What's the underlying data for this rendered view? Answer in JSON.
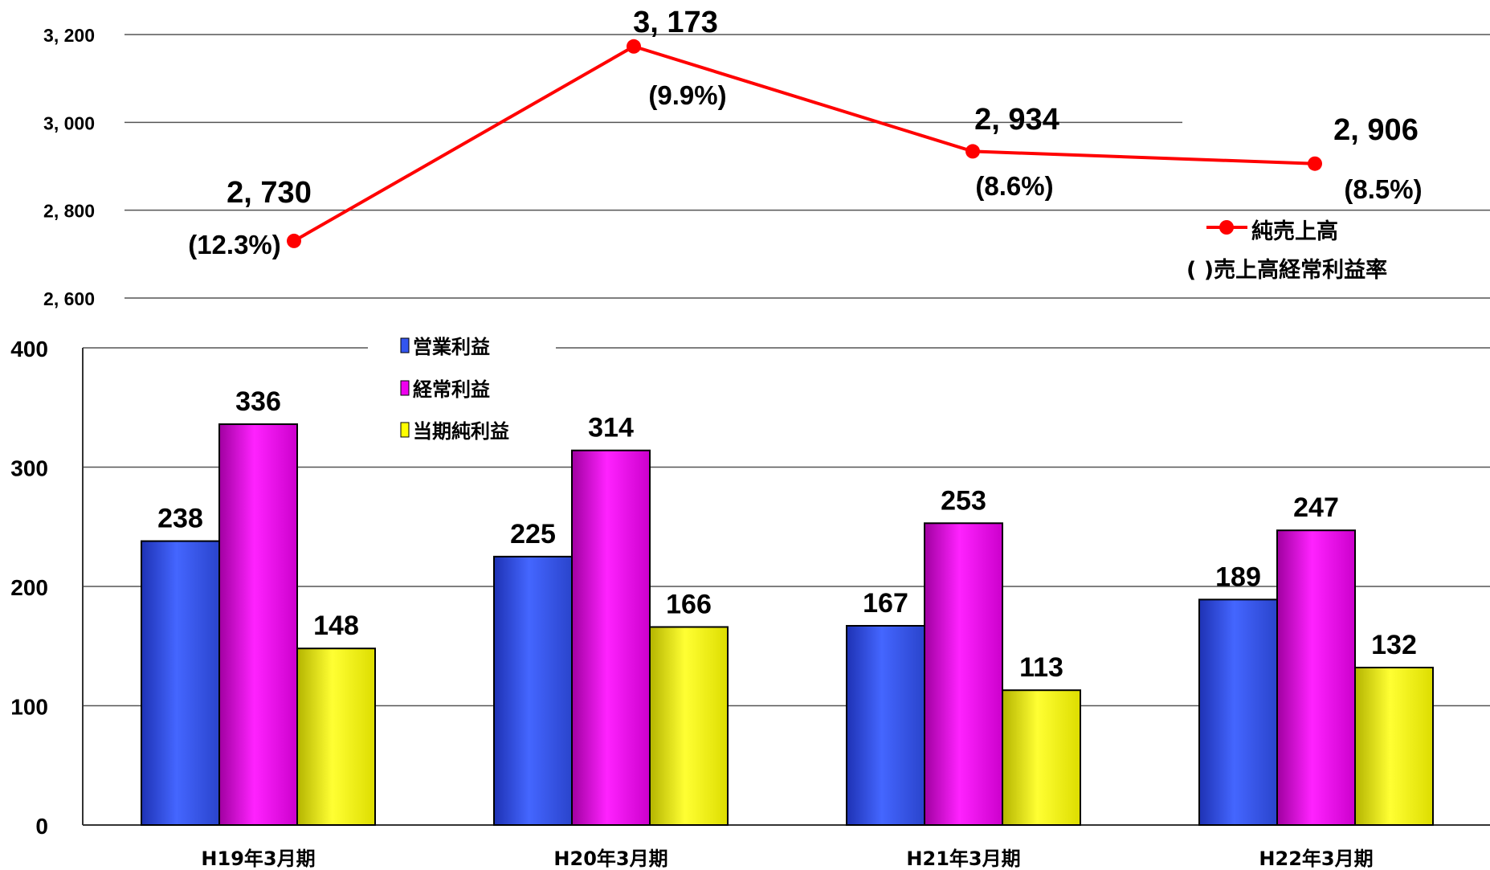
{
  "chart_data": [
    {
      "type": "line",
      "categories": [
        "H19年3月期",
        "H20年3月期",
        "H21年3月期",
        "H22年3月期"
      ],
      "series": [
        {
          "name": "純売上高",
          "values": [
            2730,
            3173,
            2934,
            2906
          ],
          "value_labels": [
            "2, 730",
            "3, 173",
            "2, 934",
            "2, 906"
          ],
          "rate_labels": [
            "(12.3%)",
            "(9.9%)",
            "(8.6%)",
            "(8.5%)"
          ],
          "color": "#ff0000"
        }
      ],
      "ylim": [
        2600,
        3200
      ],
      "yticks": [
        2600,
        2800,
        3000,
        3200
      ],
      "ytick_labels": [
        "2, 600",
        "2, 800",
        "3, 000",
        "3, 200"
      ],
      "grid": true,
      "legend": {
        "placement": "right",
        "entries": [
          "純売上高",
          "( )売上高経常利益率"
        ]
      }
    },
    {
      "type": "bar",
      "categories": [
        "H19年3月期",
        "H20年3月期",
        "H21年3月期",
        "H22年3月期"
      ],
      "series": [
        {
          "name": "営業利益",
          "values": [
            238,
            225,
            167,
            189
          ],
          "color": "#3355ee"
        },
        {
          "name": "経常利益",
          "values": [
            336,
            314,
            253,
            247
          ],
          "color": "#ee00ee"
        },
        {
          "name": "当期純利益",
          "values": [
            148,
            166,
            113,
            132
          ],
          "color": "#ffff00"
        }
      ],
      "ylim": [
        0,
        400
      ],
      "yticks": [
        0,
        100,
        200,
        300,
        400
      ],
      "ytick_labels": [
        "0",
        "100",
        "200",
        "300",
        "400"
      ],
      "grid": true,
      "legend": {
        "placement": "top-left"
      }
    }
  ]
}
